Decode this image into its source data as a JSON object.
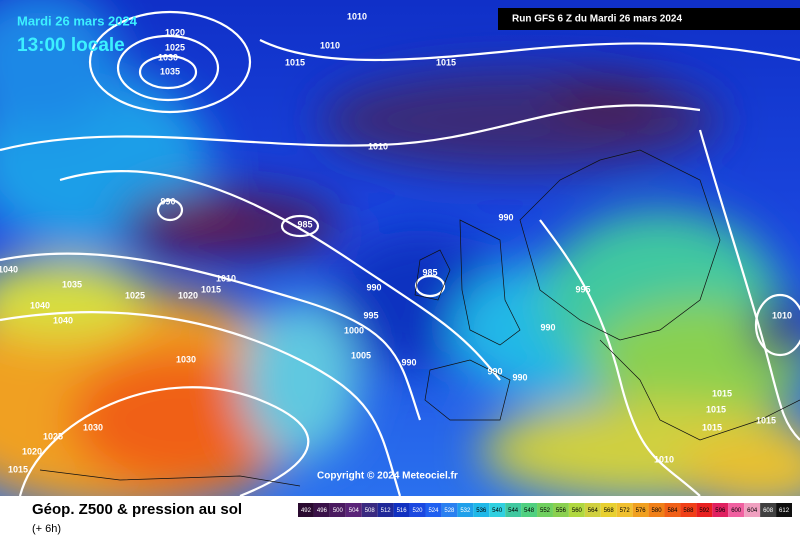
{
  "header": {
    "date": "Mardi 26 mars 2024",
    "time": "13:00 locale",
    "run": "Run GFS 6 Z du Mardi 26 mars 2024"
  },
  "copyright": "Copyright © 2024 Meteociel.fr",
  "footer": {
    "title": "Géop. Z500 & pression au sol",
    "step": "(+ 6h)"
  },
  "isobar_labels": [
    1020,
    1025,
    1030,
    1035,
    1010,
    1010,
    1015,
    1015,
    1010,
    990,
    985,
    990,
    1010,
    1015,
    1025,
    1020,
    1035,
    1040,
    1040,
    1040,
    985,
    990,
    995,
    1000,
    1005,
    990,
    990,
    990,
    995,
    990,
    1010,
    1015,
    1015,
    1015,
    1015,
    1010,
    1030,
    1030,
    1025,
    1020,
    1015
  ],
  "colorbar": {
    "ticks": [
      492,
      496,
      500,
      504,
      508,
      512,
      516,
      520,
      524,
      528,
      532,
      536,
      540,
      544,
      548,
      552,
      556,
      560,
      564,
      568,
      572,
      576,
      580,
      584,
      588,
      592,
      596,
      600,
      604,
      608,
      612
    ],
    "colors": [
      "#2a0a30",
      "#3a1248",
      "#4a1a60",
      "#5a2478",
      "#3a2a80",
      "#202898",
      "#1030c0",
      "#1b48e0",
      "#2060f0",
      "#2a80f0",
      "#20a0ea",
      "#20b8e8",
      "#30d0e0",
      "#40c8a0",
      "#50d080",
      "#70d060",
      "#8ad050",
      "#b0d840",
      "#d0d040",
      "#e8d030",
      "#f0c030",
      "#f0a020",
      "#f08018",
      "#f06018",
      "#f04018",
      "#e82020",
      "#e02060",
      "#f060a0",
      "#f0a0c0",
      "#404040",
      "#101010"
    ]
  }
}
